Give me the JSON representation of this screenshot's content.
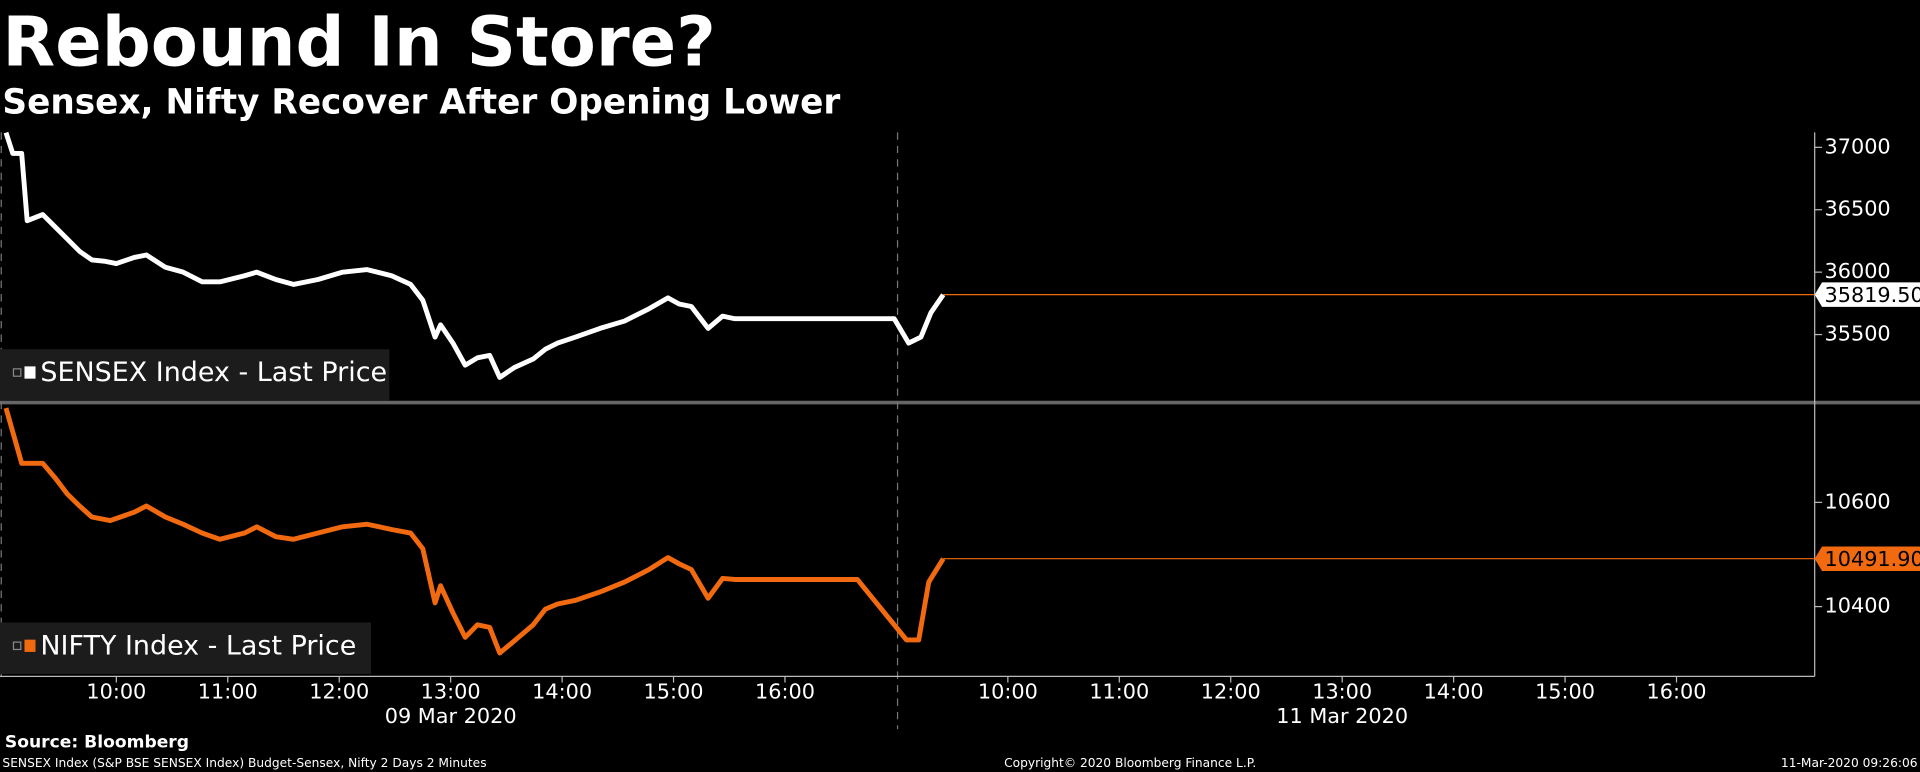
{
  "chart_data": [
    {
      "type": "line",
      "title": "Rebound In Store?",
      "subtitle": "Sensex, Nifty Recover After Opening Lower",
      "xlim": [
        0,
        16.24
      ],
      "ylim": [
        34970,
        37120
      ],
      "yticks": [
        35500,
        36000,
        36500,
        37000
      ],
      "series": [
        {
          "name": "SENSEX Index - Last Price",
          "color": "#ffffff",
          "x": [
            0.01,
            0.07,
            0.15,
            0.2,
            0.34,
            0.45,
            0.56,
            0.67,
            0.78,
            0.89,
            1.0,
            1.16,
            1.27,
            1.44,
            1.6,
            1.77,
            1.93,
            2.15,
            2.26,
            2.43,
            2.59,
            2.81,
            3.03,
            3.25,
            3.47,
            3.64,
            3.75,
            3.86,
            3.91,
            4.02,
            4.13,
            4.24,
            4.35,
            4.44,
            4.57,
            4.74,
            4.85,
            4.96,
            5.12,
            5.34,
            5.56,
            5.78,
            5.95,
            6.05,
            6.16,
            6.31,
            6.44,
            6.55,
            7.65,
            7.98,
            8.11,
            8.22,
            8.31,
            8.42
          ],
          "values": [
            37118,
            36951,
            36951,
            36412,
            36461,
            36363,
            36265,
            36167,
            36098,
            36088,
            36069,
            36118,
            36137,
            36039,
            36000,
            35922,
            35922,
            35971,
            36000,
            35941,
            35902,
            35941,
            36000,
            36020,
            35971,
            35902,
            35775,
            35480,
            35578,
            35431,
            35255,
            35314,
            35333,
            35157,
            35235,
            35304,
            35382,
            35431,
            35480,
            35549,
            35608,
            35706,
            35794,
            35745,
            35725,
            35549,
            35647,
            35627,
            35627,
            35627,
            35431,
            35480,
            35676,
            35819.5
          ],
          "reference_line": {
            "value": 35819.5,
            "label": "35819.50"
          }
        }
      ]
    },
    {
      "type": "line",
      "xlim": [
        0,
        16.24
      ],
      "ylim": [
        10266,
        10788
      ],
      "yticks": [
        10400,
        10600
      ],
      "xticks": [
        {
          "value": 1,
          "label": "10:00"
        },
        {
          "value": 2,
          "label": "11:00"
        },
        {
          "value": 3,
          "label": "12:00"
        },
        {
          "value": 4,
          "label": "13:00"
        },
        {
          "value": 5,
          "label": "14:00"
        },
        {
          "value": 6,
          "label": "15:00"
        },
        {
          "value": 7,
          "label": "16:00"
        },
        {
          "value": 9,
          "label": "10:00"
        },
        {
          "value": 10,
          "label": "11:00"
        },
        {
          "value": 11,
          "label": "12:00"
        },
        {
          "value": 12,
          "label": "13:00"
        },
        {
          "value": 13,
          "label": "14:00"
        },
        {
          "value": 14,
          "label": "15:00"
        },
        {
          "value": 15,
          "label": "16:00"
        }
      ],
      "date_labels": [
        {
          "value": 4,
          "label": "09 Mar 2020"
        },
        {
          "value": 12,
          "label": "11 Mar 2020"
        }
      ],
      "series": [
        {
          "name": "NIFTY Index - Last Price",
          "color": "#f26a10",
          "x": [
            0.01,
            0.15,
            0.34,
            0.45,
            0.56,
            0.67,
            0.78,
            0.945,
            1.16,
            1.27,
            1.44,
            1.6,
            1.77,
            1.93,
            2.15,
            2.26,
            2.43,
            2.59,
            2.81,
            3.03,
            3.25,
            3.47,
            3.64,
            3.75,
            3.86,
            3.91,
            4.02,
            4.13,
            4.24,
            4.35,
            4.44,
            4.57,
            4.74,
            4.85,
            4.96,
            5.12,
            5.34,
            5.56,
            5.78,
            5.95,
            6.05,
            6.16,
            6.31,
            6.44,
            6.55,
            7.65,
            8.09,
            8.2,
            8.29,
            8.42
          ],
          "values": [
            10781,
            10675,
            10675,
            10647,
            10616,
            10593,
            10572,
            10565,
            10581,
            10593,
            10572,
            10558,
            10541,
            10529,
            10541,
            10553,
            10534,
            10529,
            10541,
            10553,
            10558,
            10548,
            10541,
            10511,
            10407,
            10440,
            10388,
            10341,
            10365,
            10360,
            10311,
            10334,
            10365,
            10395,
            10405,
            10412,
            10428,
            10447,
            10471,
            10494,
            10482,
            10471,
            10416,
            10454,
            10452,
            10452,
            10336,
            10336,
            10447,
            10491.9
          ],
          "reference_line": {
            "value": 10491.9,
            "label": "10491.90"
          }
        }
      ]
    }
  ],
  "footer": {
    "source": "Source: Bloomberg",
    "note": "SENSEX Index (S&P BSE SENSEX Index) Budget-Sensex, Nifty 2 Days 2 Minutes",
    "copyright": "Copyright© 2020 Bloomberg Finance L.P.",
    "timestamp": "11-Mar-2020 09:26:06"
  }
}
